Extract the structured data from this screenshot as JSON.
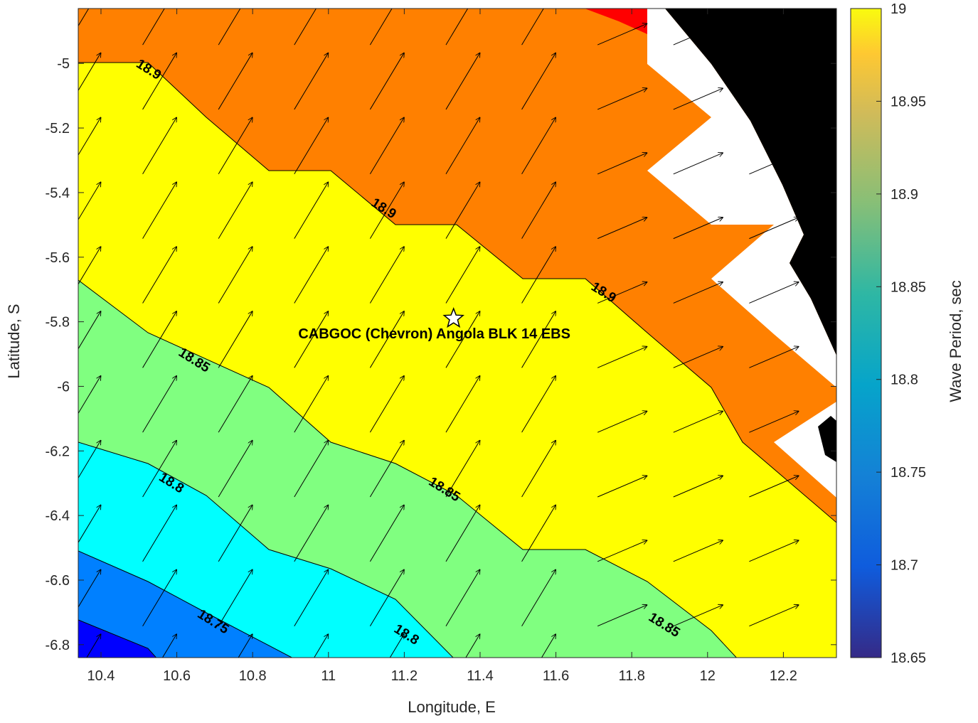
{
  "chart_data": {
    "type": "contour",
    "title": "",
    "xlabel": "Longitude, E",
    "ylabel": "Latitude, S",
    "xlim": [
      10.34,
      12.34
    ],
    "ylim": [
      -6.84,
      -4.83
    ],
    "xticks": [
      "10.4",
      "10.6",
      "10.8",
      "11",
      "11.2",
      "11.4",
      "11.6",
      "11.8",
      "12",
      "12.2"
    ],
    "yticks": [
      "-5",
      "-5.2",
      "-5.4",
      "-5.6",
      "-5.8",
      "-6",
      "-6.2",
      "-6.4",
      "-6.6",
      "-6.8"
    ],
    "colorbar": {
      "label": "Wave Period, sec",
      "range": [
        18.65,
        19.0
      ],
      "ticks": [
        "19",
        "18.95",
        "18.9",
        "18.85",
        "18.8",
        "18.75",
        "18.7",
        "18.65"
      ]
    },
    "contour_levels": [
      18.7,
      18.75,
      18.8,
      18.85,
      18.9,
      18.95
    ],
    "fill_colors": {
      "below_18.7": "#0000ff",
      "18.7_18.75": "#0080ff",
      "18.75_18.8": "#00ffff",
      "18.8_18.85": "#80ff80",
      "18.85_18.9": "#ffff00",
      "18.9_18.95": "#ff8000",
      "above_18.95": "#ff0000",
      "land": "#000000",
      "no_data": "#ffffff"
    },
    "contour_labels": [
      {
        "text": "18.9",
        "lon": 10.52,
        "lat": -5.03
      },
      {
        "text": "18.9",
        "lon": 11.14,
        "lat": -5.46
      },
      {
        "text": "18.9",
        "lon": 11.72,
        "lat": -5.72
      },
      {
        "text": "18.85",
        "lon": 10.64,
        "lat": -5.93
      },
      {
        "text": "18.85",
        "lon": 11.3,
        "lat": -6.33
      },
      {
        "text": "18.85",
        "lon": 11.88,
        "lat": -6.75
      },
      {
        "text": "18.8",
        "lon": 10.58,
        "lat": -6.31
      },
      {
        "text": "18.8",
        "lon": 11.2,
        "lat": -6.78
      },
      {
        "text": "18.75",
        "lon": 10.69,
        "lat": -6.74
      }
    ],
    "site": {
      "label": "CABGOC (Chevron)  Angola BLK 14  EBS",
      "lon": 11.33,
      "lat": -5.79
    },
    "vectors": {
      "description_direction": "north-northeast",
      "grid_lon_step": 0.2,
      "grid_lat_step": 0.2
    }
  }
}
